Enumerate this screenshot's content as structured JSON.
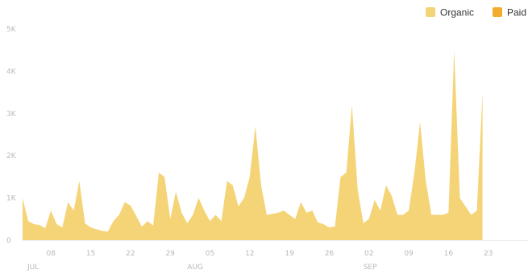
{
  "chart_data": {
    "type": "area",
    "stacked": true,
    "legend_position": "top-right",
    "grid": false,
    "title": "",
    "xlabel": "",
    "ylabel": "",
    "ylim": [
      0,
      5000
    ],
    "y_ticks": [
      {
        "value": 0,
        "label": "0"
      },
      {
        "value": 1000,
        "label": "1K"
      },
      {
        "value": 2000,
        "label": "2K"
      },
      {
        "value": 3000,
        "label": "3K"
      },
      {
        "value": 4000,
        "label": "4K"
      },
      {
        "value": 5000,
        "label": "5K"
      }
    ],
    "x_range": [
      "2023-07-03",
      "2023-09-30"
    ],
    "x_ticks": [
      {
        "date": "2023-07-08",
        "label": "08"
      },
      {
        "date": "2023-07-15",
        "label": "15"
      },
      {
        "date": "2023-07-22",
        "label": "22"
      },
      {
        "date": "2023-07-29",
        "label": "29"
      },
      {
        "date": "2023-08-05",
        "label": "05"
      },
      {
        "date": "2023-08-12",
        "label": "12"
      },
      {
        "date": "2023-08-19",
        "label": "19"
      },
      {
        "date": "2023-08-26",
        "label": "26"
      },
      {
        "date": "2023-09-02",
        "label": "02"
      },
      {
        "date": "2023-09-09",
        "label": "09"
      },
      {
        "date": "2023-09-16",
        "label": "16"
      },
      {
        "date": "2023-09-23",
        "label": "23"
      }
    ],
    "month_labels": [
      {
        "date": "2023-07-03",
        "label": "JUL"
      },
      {
        "date": "2023-08-01",
        "label": "AUG"
      },
      {
        "date": "2023-09-01",
        "label": "SEP"
      }
    ],
    "series": [
      {
        "name": "Organic",
        "color": "#f4d476",
        "points": [
          [
            "2023-07-03",
            1000
          ],
          [
            "2023-07-04",
            450
          ],
          [
            "2023-07-05",
            380
          ],
          [
            "2023-07-06",
            360
          ],
          [
            "2023-07-07",
            280
          ],
          [
            "2023-07-08",
            700
          ],
          [
            "2023-07-09",
            380
          ],
          [
            "2023-07-10",
            300
          ],
          [
            "2023-07-11",
            900
          ],
          [
            "2023-07-12",
            700
          ],
          [
            "2023-07-13",
            1400
          ],
          [
            "2023-07-14",
            400
          ],
          [
            "2023-07-15",
            300
          ],
          [
            "2023-07-16",
            260
          ],
          [
            "2023-07-17",
            220
          ],
          [
            "2023-07-18",
            200
          ],
          [
            "2023-07-19",
            450
          ],
          [
            "2023-07-20",
            600
          ],
          [
            "2023-07-21",
            900
          ],
          [
            "2023-07-22",
            820
          ],
          [
            "2023-07-23",
            580
          ],
          [
            "2023-07-24",
            320
          ],
          [
            "2023-07-25",
            450
          ],
          [
            "2023-07-26",
            350
          ],
          [
            "2023-07-27",
            1600
          ],
          [
            "2023-07-28",
            1500
          ],
          [
            "2023-07-29",
            500
          ],
          [
            "2023-07-30",
            1150
          ],
          [
            "2023-07-31",
            650
          ],
          [
            "2023-08-01",
            400
          ],
          [
            "2023-08-02",
            600
          ],
          [
            "2023-08-03",
            1000
          ],
          [
            "2023-08-04",
            700
          ],
          [
            "2023-08-05",
            450
          ],
          [
            "2023-08-06",
            600
          ],
          [
            "2023-08-07",
            450
          ],
          [
            "2023-08-08",
            1400
          ],
          [
            "2023-08-09",
            1300
          ],
          [
            "2023-08-10",
            800
          ],
          [
            "2023-08-11",
            1000
          ],
          [
            "2023-08-12",
            1500
          ],
          [
            "2023-08-13",
            2700
          ],
          [
            "2023-08-14",
            1300
          ],
          [
            "2023-08-15",
            600
          ],
          [
            "2023-08-16",
            620
          ],
          [
            "2023-08-17",
            650
          ],
          [
            "2023-08-18",
            700
          ],
          [
            "2023-08-19",
            600
          ],
          [
            "2023-08-20",
            500
          ],
          [
            "2023-08-21",
            900
          ],
          [
            "2023-08-22",
            650
          ],
          [
            "2023-08-23",
            700
          ],
          [
            "2023-08-24",
            420
          ],
          [
            "2023-08-25",
            380
          ],
          [
            "2023-08-26",
            300
          ],
          [
            "2023-08-27",
            320
          ],
          [
            "2023-08-28",
            1500
          ],
          [
            "2023-08-29",
            1600
          ],
          [
            "2023-08-30",
            3200
          ],
          [
            "2023-08-31",
            1200
          ],
          [
            "2023-09-01",
            400
          ],
          [
            "2023-09-02",
            500
          ],
          [
            "2023-09-03",
            950
          ],
          [
            "2023-09-04",
            700
          ],
          [
            "2023-09-05",
            1300
          ],
          [
            "2023-09-06",
            1050
          ],
          [
            "2023-09-07",
            600
          ],
          [
            "2023-09-08",
            600
          ],
          [
            "2023-09-09",
            700
          ],
          [
            "2023-09-10",
            1600
          ],
          [
            "2023-09-11",
            2800
          ],
          [
            "2023-09-12",
            1400
          ],
          [
            "2023-09-13",
            600
          ],
          [
            "2023-09-14",
            600
          ],
          [
            "2023-09-15",
            600
          ],
          [
            "2023-09-16",
            650
          ],
          [
            "2023-09-17",
            4500
          ],
          [
            "2023-09-18",
            1000
          ],
          [
            "2023-09-19",
            800
          ],
          [
            "2023-09-20",
            600
          ],
          [
            "2023-09-21",
            700
          ],
          [
            "2023-09-22",
            3500
          ]
        ]
      },
      {
        "name": "Paid",
        "color": "#f2ad2e",
        "points": []
      }
    ]
  }
}
